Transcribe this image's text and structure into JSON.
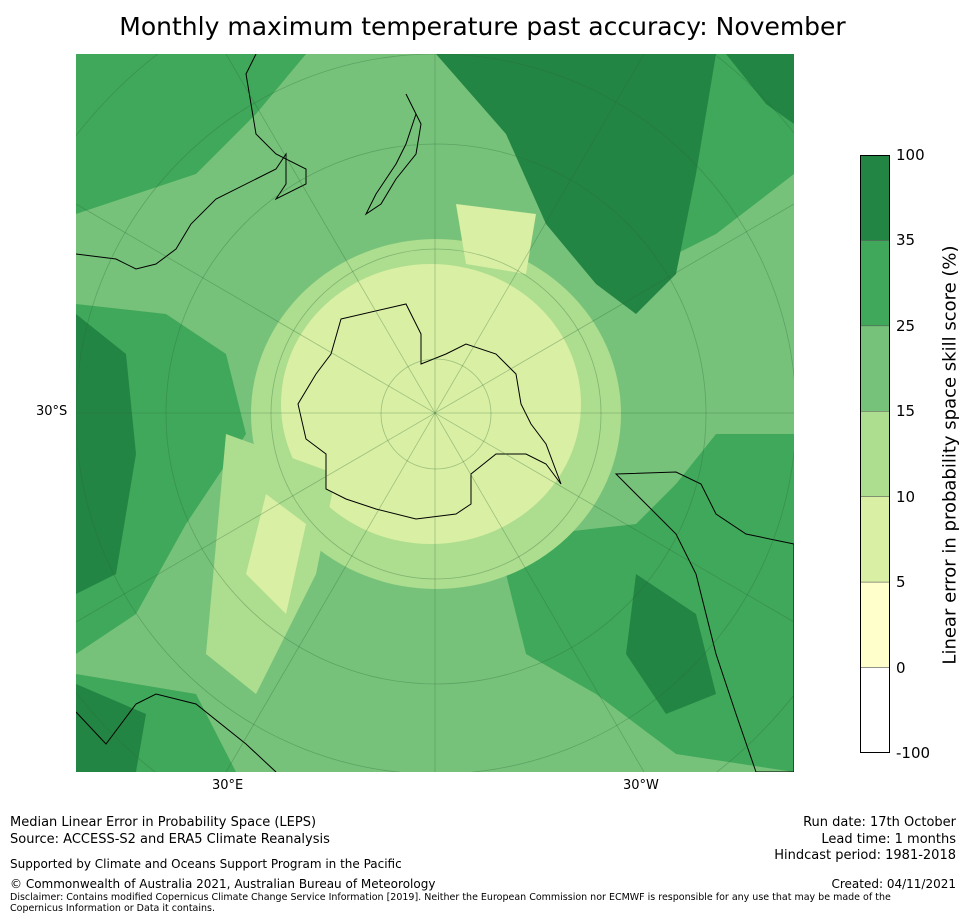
{
  "title": "Monthly maximum temperature past accuracy: November",
  "map": {
    "lat_label": "30°S",
    "lon_label_east": "30°E",
    "lon_label_west": "30°W",
    "region": "Southern polar stereographic view centred on Antarctica"
  },
  "colorbar": {
    "label": "Linear error in probability space skill score (%)",
    "ticks": [
      "100",
      "35",
      "25",
      "15",
      "10",
      "5",
      "0",
      "-100"
    ],
    "bins": [
      {
        "from": "35",
        "to": "100",
        "color": "#238543"
      },
      {
        "from": "25",
        "to": "35",
        "color": "#40a85a"
      },
      {
        "from": "15",
        "to": "25",
        "color": "#77c27a"
      },
      {
        "from": "10",
        "to": "15",
        "color": "#addd8e"
      },
      {
        "from": "5",
        "to": "10",
        "color": "#d9efa3"
      },
      {
        "from": "0",
        "to": "5",
        "color": "#ffffcc"
      },
      {
        "from": "-100",
        "to": "0",
        "color": "#ffffff"
      }
    ]
  },
  "footer": {
    "method": "Median Linear Error in Probability Space (LEPS)",
    "source": "Source: ACCESS-S2 and ERA5 Climate Reanalysis",
    "support": "Supported by Climate and Oceans Support Program in the Pacific",
    "copyright": "© Commonwealth of Australia 2021, Australian Bureau of Meteorology",
    "disclaimer": "Disclaimer: Contains modified Copernicus Climate Change Service Information [2019]. Neither the European Commission nor ECMWF is responsible for any use that may be made of the Copernicus Information or Data it contains.",
    "run_date": "Run date: 17th October",
    "lead_time": "Lead time: 1 months",
    "hindcast": "Hindcast period: 1981-2018",
    "created": "Created: 04/11/2021"
  }
}
